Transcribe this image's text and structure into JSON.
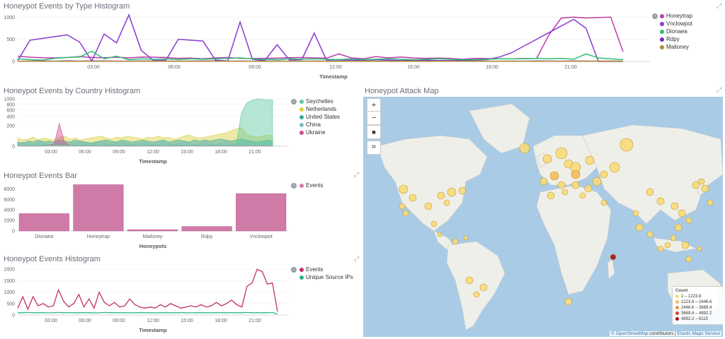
{
  "panels": {
    "type_histogram": {
      "title": "Honeypot Events by Type Histogram",
      "xlabel": "Timestamp",
      "legend": [
        "Honeytrap",
        "Vnclowpot",
        "Dionaea",
        "Rdpy",
        "Mailoney"
      ],
      "chart_data": {
        "type": "line",
        "x_ticks": [
          "03:00",
          "06:00",
          "09:00",
          "12:00",
          "15:00",
          "18:00",
          "21:00"
        ],
        "y_ticks": [
          "1000",
          "500",
          "0"
        ],
        "ylim": [
          0,
          1100
        ],
        "series": [
          {
            "name": "Honeytrap",
            "color": "#c03aa7",
            "values": [
              120,
              95,
              85,
              80,
              90,
              110,
              90,
              85,
              95,
              80,
              100,
              95,
              90,
              70,
              75,
              60,
              80,
              90,
              70,
              65,
              70,
              75,
              85,
              90,
              80,
              75,
              170,
              80,
              60,
              110,
              80,
              100,
              80,
              70,
              75,
              70,
              50,
              70,
              65,
              60,
              60,
              65,
              70,
              600,
              980,
              1000,
              980,
              990,
              1000,
              220
            ]
          },
          {
            "name": "Vnclowpot",
            "color": "#8a3bd1",
            "values": [
              20,
              480,
              520,
              560,
              600,
              440,
              10,
              620,
              420,
              1050,
              250,
              20,
              30,
              500,
              480,
              460,
              30,
              10,
              890,
              50,
              20,
              380,
              30,
              40,
              640,
              30,
              40,
              30,
              30,
              40,
              30,
              20,
              30,
              30,
              20,
              20,
              20,
              30,
              40,
              100,
              200,
              350,
              500,
              650,
              800,
              950,
              750,
              0,
              0,
              0
            ]
          },
          {
            "name": "Dionaea",
            "color": "#2cbf74",
            "values": [
              60,
              40,
              30,
              70,
              90,
              100,
              230,
              60,
              120,
              40,
              60,
              50,
              60,
              40,
              60,
              50,
              60,
              70,
              80,
              60,
              50,
              40,
              60,
              50,
              60,
              50,
              40,
              60,
              40,
              50,
              60,
              50,
              40,
              50,
              60,
              50,
              40,
              40,
              50,
              60,
              60,
              60,
              70,
              60,
              70,
              50,
              170,
              80,
              60,
              40
            ]
          },
          {
            "name": "Rdpy",
            "color": "#6c2ab5",
            "values": [
              5,
              8,
              10,
              6,
              12,
              8,
              10,
              9,
              6,
              8,
              10,
              8,
              6,
              7,
              8,
              9,
              10,
              6,
              8,
              7,
              9,
              8,
              6,
              7,
              8,
              6,
              9,
              7,
              8,
              6,
              8,
              9,
              10,
              8,
              7,
              6,
              9,
              8,
              7,
              6,
              8,
              7,
              9,
              8,
              6,
              9,
              8,
              7,
              8,
              6
            ]
          },
          {
            "name": "Mailoney",
            "color": "#b08a30",
            "values": [
              3,
              3,
              3,
              3,
              3,
              3,
              3,
              3,
              3,
              3,
              3,
              3,
              3,
              3,
              3,
              3,
              3,
              3,
              3,
              3,
              3,
              3,
              3,
              3,
              3,
              3,
              3,
              3,
              3,
              3,
              3,
              3,
              3,
              3,
              3,
              3,
              3,
              3,
              3,
              3,
              3,
              3,
              3,
              3,
              3,
              3,
              3,
              3,
              3,
              3
            ]
          }
        ]
      }
    },
    "country_histogram": {
      "title": "Honeypot Events by Country Histogram",
      "xlabel": "Timestamp",
      "legend": [
        "Seychelles",
        "Netherlands",
        "United States",
        "China",
        "Ukraine"
      ],
      "chart_data": {
        "type": "area",
        "x_ticks": [
          "03:00",
          "06:00",
          "09:00",
          "12:00",
          "15:00",
          "18:00",
          "21:00"
        ],
        "y_ticks": [
          "1000",
          "800",
          "600",
          "400",
          "200",
          "0"
        ],
        "series": [
          {
            "name": "Seychelles",
            "color": "#5ec7a0",
            "values": [
              10,
              10,
              10,
              10,
              10,
              10,
              10,
              10,
              10,
              10,
              10,
              10,
              10,
              10,
              10,
              10,
              10,
              10,
              10,
              10,
              10,
              10,
              10,
              10,
              10,
              10,
              10,
              10,
              10,
              10,
              10,
              10,
              10,
              10,
              10,
              10,
              10,
              10,
              10,
              10,
              10,
              10,
              10,
              500,
              850,
              950,
              1000,
              980,
              960,
              960
            ]
          },
          {
            "name": "Netherlands",
            "color": "#d8cf3d",
            "values": [
              80,
              60,
              70,
              90,
              60,
              80,
              70,
              60,
              90,
              100,
              70,
              80,
              60,
              70,
              80,
              90,
              100,
              80,
              70,
              90,
              80,
              100,
              90,
              80,
              70,
              90,
              80,
              100,
              80,
              90,
              70,
              80,
              100,
              110,
              90,
              80,
              90,
              100,
              110,
              120,
              130,
              150,
              170,
              180,
              120,
              100,
              90,
              100,
              110,
              100
            ]
          },
          {
            "name": "United States",
            "color": "#3aa89a",
            "values": [
              40,
              30,
              50,
              40,
              60,
              40,
              50,
              40,
              60,
              50,
              40,
              60,
              50,
              40,
              30,
              40,
              50,
              60,
              50,
              40,
              60,
              50,
              40,
              50,
              60,
              50,
              40,
              50,
              60,
              40,
              50,
              60,
              50,
              40,
              60,
              50,
              60,
              50,
              60,
              70,
              60,
              50,
              60,
              70,
              60,
              50,
              40,
              50,
              60,
              50
            ]
          },
          {
            "name": "China",
            "color": "#7ac0c7",
            "values": [
              30,
              40,
              30,
              20,
              40,
              30,
              20,
              30,
              40,
              30,
              20,
              30,
              40,
              30,
              20,
              30,
              40,
              30,
              20,
              30,
              40,
              30,
              20,
              30,
              40,
              30,
              20,
              30,
              40,
              30,
              20,
              30,
              40,
              30,
              20,
              30,
              40,
              30,
              20,
              30,
              40,
              30,
              20,
              30,
              40,
              30,
              20,
              30,
              40,
              30
            ]
          },
          {
            "name": "Ukraine",
            "color": "#d24a90",
            "values": [
              5,
              5,
              5,
              5,
              5,
              5,
              10,
              20,
              250,
              40,
              10,
              5,
              5,
              5,
              5,
              5,
              5,
              5,
              5,
              5,
              5,
              5,
              5,
              5,
              5,
              5,
              5,
              5,
              5,
              5,
              5,
              5,
              5,
              5,
              5,
              5,
              5,
              5,
              5,
              5,
              5,
              5,
              5,
              5,
              5,
              5,
              5,
              5,
              5,
              5
            ]
          }
        ]
      }
    },
    "events_bar": {
      "title": "Honeypot Events Bar",
      "xlabel": "Honeypots",
      "legend": [
        "Events"
      ],
      "chart_data": {
        "type": "bar",
        "categories": [
          "Dionaea",
          "Honeytrap",
          "Mailoney",
          "Rdpy",
          "Vnclowpot"
        ],
        "values": [
          3300,
          8800,
          250,
          850,
          7100
        ],
        "y_ticks": [
          "8000",
          "6000",
          "4000",
          "2000",
          "0"
        ],
        "ylim": [
          0,
          9000
        ],
        "color": "#d07aa8"
      }
    },
    "events_histogram": {
      "title": "Honeypot Events Histogram",
      "xlabel": "Timestamp",
      "legend": [
        "Events",
        "Unique Source IPs"
      ],
      "chart_data": {
        "type": "line",
        "x_ticks": [
          "03:00",
          "06:00",
          "09:00",
          "12:00",
          "15:00",
          "18:00",
          "21:00"
        ],
        "y_ticks": [
          "2000",
          "1500",
          "1000",
          "500",
          "0"
        ],
        "ylim": [
          0,
          2100
        ],
        "series": [
          {
            "name": "Events",
            "color": "#c2306a",
            "values": [
              300,
              800,
              250,
              800,
              400,
              500,
              350,
              400,
              1100,
              600,
              350,
              500,
              900,
              350,
              700,
              300,
              1000,
              550,
              400,
              550,
              350,
              400,
              700,
              450,
              350,
              300,
              350,
              300,
              450,
              350,
              500,
              400,
              300,
              350,
              400,
              350,
              450,
              350,
              400,
              550,
              400,
              500,
              650,
              450,
              350,
              1250,
              1400,
              2000,
              1900,
              1350,
              1400,
              150
            ]
          },
          {
            "name": "Unique Source IPs",
            "color": "#2fb58a",
            "values": [
              100,
              100,
              110,
              100,
              105,
              100,
              95,
              100,
              110,
              100,
              105,
              100,
              100,
              105,
              100,
              95,
              100,
              110,
              100,
              105,
              100,
              100,
              95,
              100,
              105,
              100,
              100,
              95,
              100,
              105,
              100,
              100,
              105,
              100,
              95,
              100,
              105,
              100,
              100,
              105,
              100,
              100,
              105,
              100,
              100,
              110,
              100,
              105,
              100,
              100,
              110,
              40
            ]
          }
        ]
      }
    },
    "attack_map": {
      "title": "Honeypot Attack Map",
      "buttons": [
        "+",
        "−",
        "■",
        "⌗"
      ],
      "legend_title": "Count",
      "legend_items": [
        {
          "label": "1 – 1223.8",
          "color": "#f7dc7a"
        },
        {
          "label": "1223.8 – 2446.6",
          "color": "#f5bb5a"
        },
        {
          "label": "2446.6 – 3669.4",
          "color": "#ef8f3c"
        },
        {
          "label": "3669.4 – 4892.2",
          "color": "#d84a2a"
        },
        {
          "label": "4892.2 – 6115",
          "color": "#a8101a"
        }
      ],
      "attribution_link1": "© OpenStreetMap",
      "attribution_text": " contributors | ",
      "attribution_link2": "Elastic Maps Service"
    }
  }
}
